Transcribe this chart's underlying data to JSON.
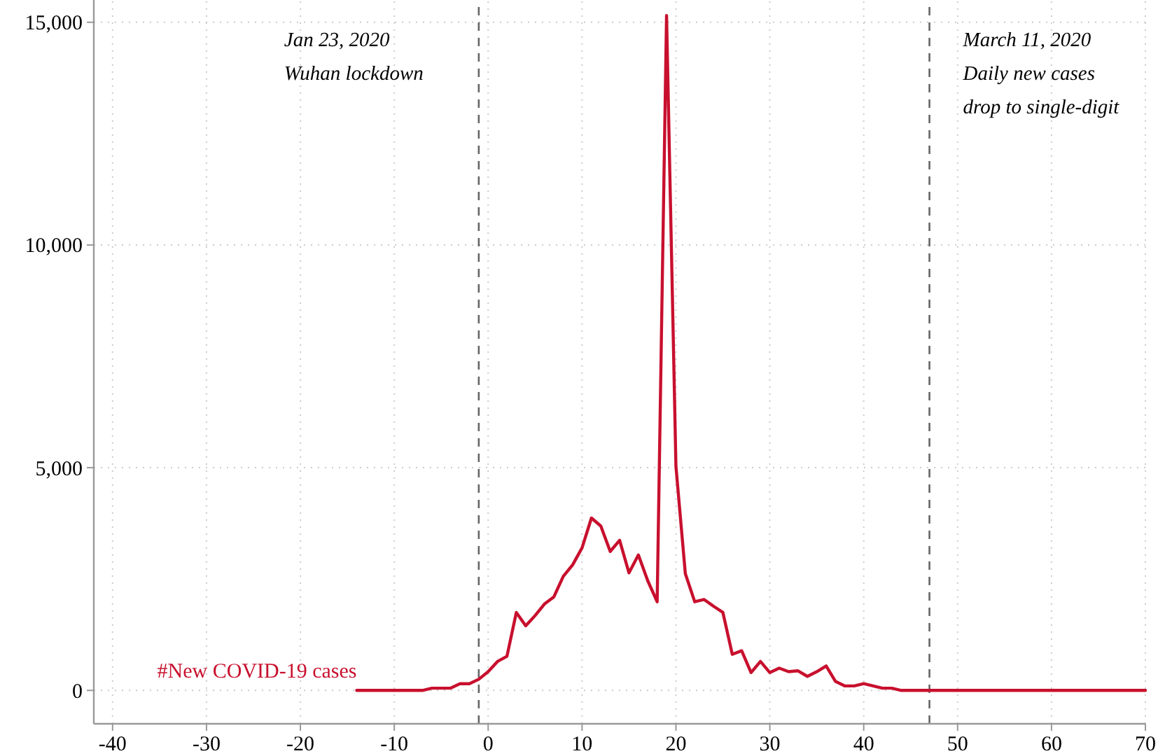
{
  "chart_data": {
    "type": "line",
    "xlim": [
      -42,
      70
    ],
    "ylim": [
      -750,
      15500
    ],
    "xticks": [
      -40,
      -30,
      -20,
      -10,
      0,
      10,
      20,
      30,
      40,
      50,
      60,
      70
    ],
    "yticks": [
      0,
      {
        "value": 5000,
        "label": "5,000"
      },
      {
        "value": 10000,
        "label": "10,000"
      },
      {
        "value": 15000,
        "label": "15,000"
      }
    ],
    "grid": true,
    "line_style": "solid",
    "marker": "none",
    "x": [
      -14,
      -13,
      -12,
      -11,
      -10,
      -9,
      -8,
      -7,
      -6,
      -5,
      -4,
      -3,
      -2,
      -1,
      0,
      1,
      2,
      3,
      4,
      5,
      6,
      7,
      8,
      9,
      10,
      11,
      12,
      13,
      14,
      15,
      16,
      17,
      18,
      19,
      20,
      21,
      22,
      23,
      24,
      25,
      26,
      27,
      28,
      29,
      30,
      31,
      32,
      33,
      34,
      35,
      36,
      37,
      38,
      39,
      40,
      41,
      42,
      43,
      44,
      45,
      46,
      47,
      48,
      49,
      50,
      51,
      52,
      53,
      54,
      55,
      56,
      57,
      58,
      59,
      60,
      61,
      62,
      63,
      64,
      65,
      66,
      67,
      68,
      69,
      70
    ],
    "series": [
      {
        "name": "#New COVID-19 cases",
        "color": "#c8102e",
        "values": [
          0,
          0,
          0,
          0,
          0,
          0,
          0,
          0,
          50,
          50,
          50,
          150,
          150,
          250,
          420,
          650,
          765,
          1750,
          1450,
          1680,
          1940,
          2100,
          2560,
          2820,
          3200,
          3870,
          3690,
          3120,
          3370,
          2640,
          3040,
          2460,
          1990,
          15150,
          5030,
          2620,
          1990,
          2040,
          1890,
          1750,
          810,
          890,
          400,
          650,
          400,
          500,
          420,
          440,
          315,
          420,
          550,
          200,
          100,
          100,
          150,
          100,
          50,
          50,
          0,
          0,
          0,
          0,
          0,
          0,
          0,
          0,
          0,
          0,
          0,
          0,
          0,
          0,
          0,
          0,
          0,
          0,
          0,
          0,
          0,
          0,
          0,
          0,
          0,
          0,
          0
        ]
      }
    ],
    "ref_lines": [
      {
        "axis": "x",
        "value": -1,
        "label": "Jan 23, 2020\nWuhan lockdown",
        "color": "#666666",
        "line_style": "dashed"
      },
      {
        "axis": "x",
        "value": 47,
        "label": "March 11, 2020\nDaily new cases\ndrop to single-digit",
        "color": "#666666",
        "line_style": "dashed"
      }
    ]
  }
}
